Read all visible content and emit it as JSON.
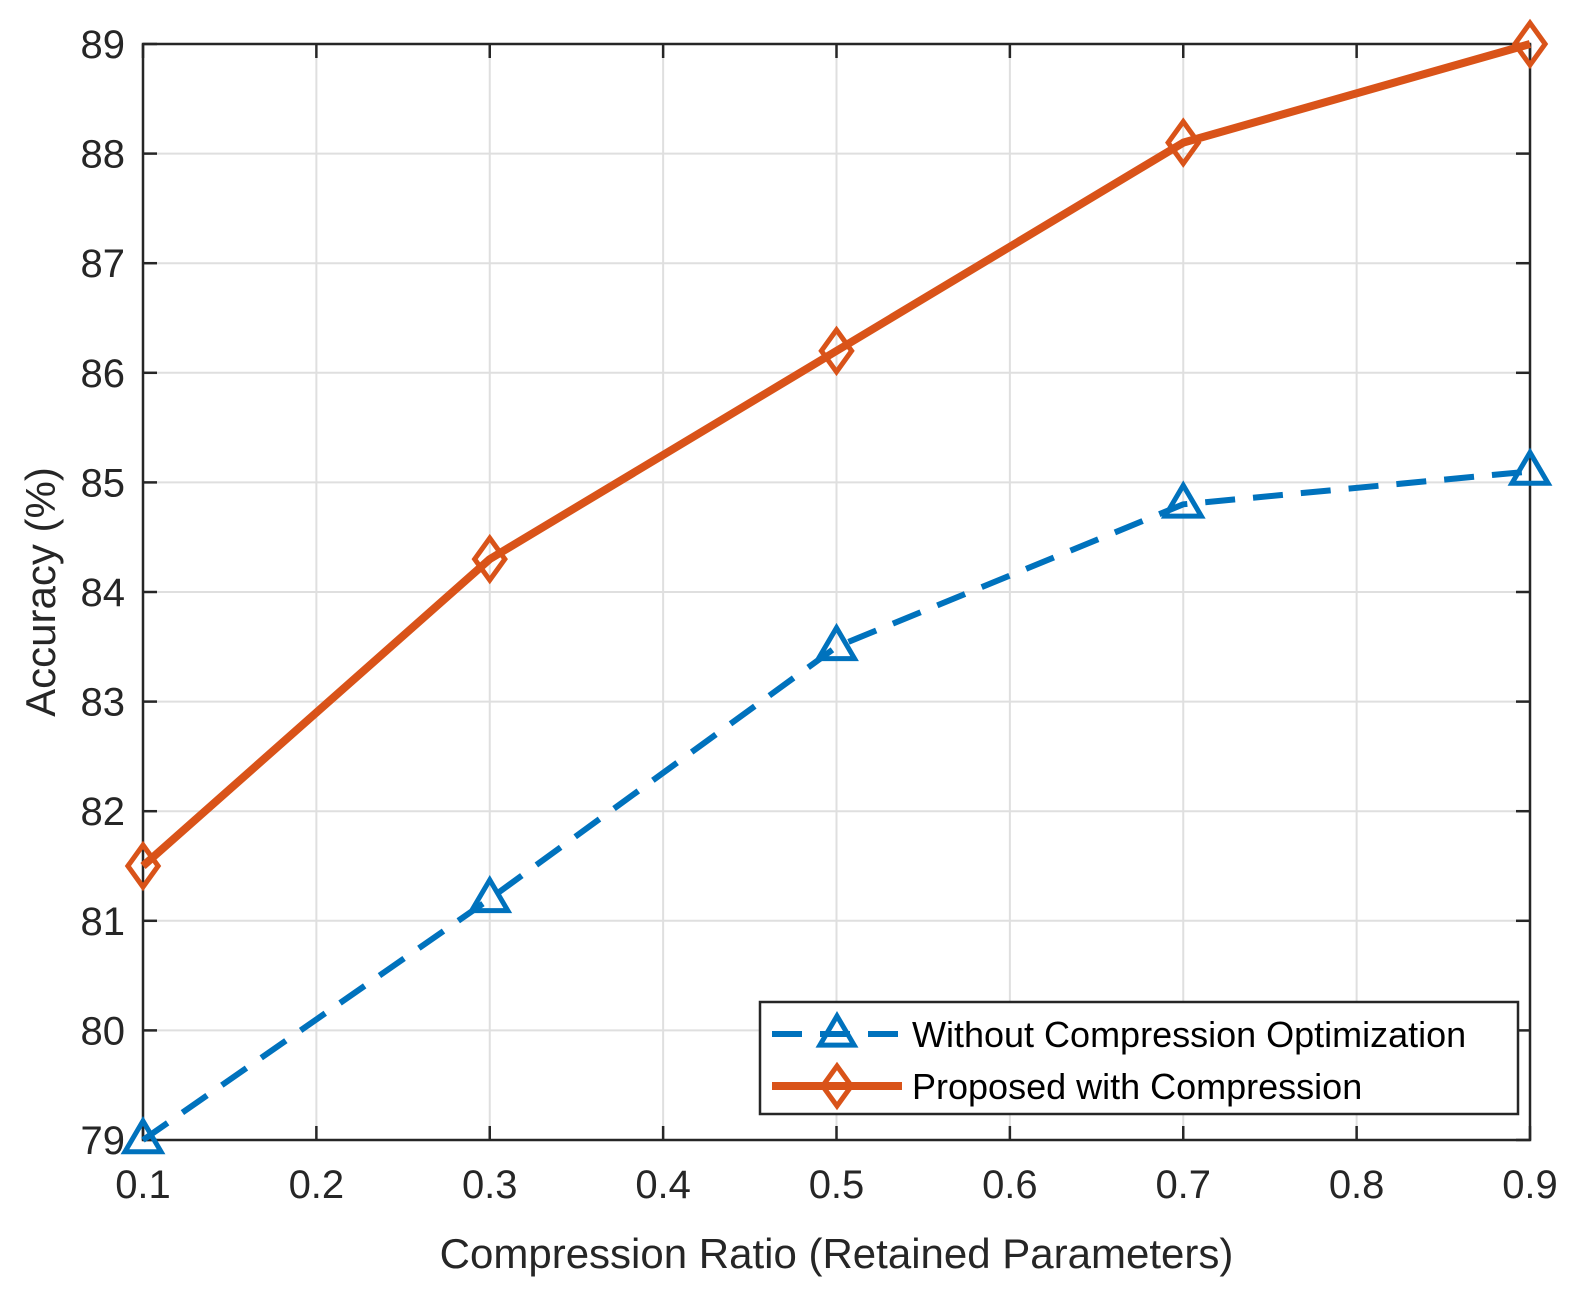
{
  "chart_data": {
    "type": "line",
    "title": "",
    "xlabel": "Compression Ratio (Retained Parameters)",
    "ylabel": "Accuracy (%)",
    "xlim": [
      0.1,
      0.9
    ],
    "ylim": [
      79,
      89
    ],
    "x_ticks": [
      "0.1",
      "0.2",
      "0.3",
      "0.4",
      "0.5",
      "0.6",
      "0.7",
      "0.8",
      "0.9"
    ],
    "y_ticks": [
      "79",
      "80",
      "81",
      "82",
      "83",
      "84",
      "85",
      "86",
      "87",
      "88",
      "89"
    ],
    "grid": true,
    "legend_position": "bottom-right",
    "series": [
      {
        "name": "Without Compression Optimization",
        "x": [
          0.1,
          0.3,
          0.5,
          0.7,
          0.9
        ],
        "values": [
          79.0,
          81.2,
          83.5,
          84.8,
          85.1
        ],
        "color": "#0072BD",
        "line_style": "dashed",
        "marker": "triangle"
      },
      {
        "name": "Proposed with Compression",
        "x": [
          0.1,
          0.3,
          0.5,
          0.7,
          0.9
        ],
        "values": [
          81.5,
          84.3,
          86.2,
          88.1,
          89.0
        ],
        "color": "#D95319",
        "line_style": "solid",
        "marker": "diamond"
      }
    ]
  }
}
